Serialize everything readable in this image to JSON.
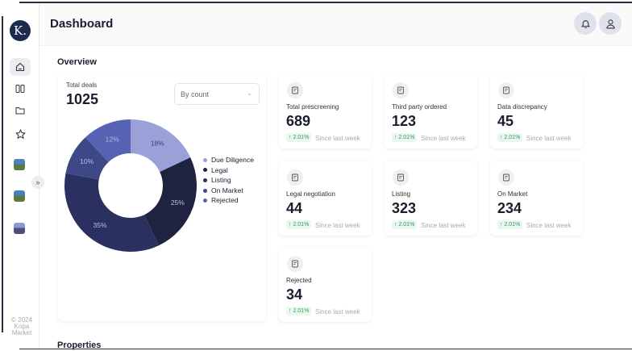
{
  "app": {
    "logo_letter": "K.",
    "copyright": "© 2024 Kopa Market"
  },
  "header": {
    "title": "Dashboard"
  },
  "sections": {
    "overview": "Overview",
    "properties": "Properties"
  },
  "sidebar": {
    "items": [
      {
        "icon": "home-icon"
      },
      {
        "icon": "columns-icon"
      },
      {
        "icon": "folder-icon"
      },
      {
        "icon": "star-icon"
      },
      {
        "icon": "property-thumbnail"
      },
      {
        "icon": "property-thumbnail"
      },
      {
        "icon": "property-thumbnail"
      }
    ]
  },
  "deals": {
    "label": "Total deals",
    "value": "1025",
    "select": "By count"
  },
  "chart_data": {
    "type": "pie",
    "donut": true,
    "categories": [
      "Due Diligence",
      "Legal",
      "Listing",
      "On Market",
      "Rejected"
    ],
    "values": [
      18,
      25,
      35,
      10,
      12
    ],
    "labels": [
      "18%",
      "25%",
      "35%",
      "10%",
      "12%"
    ],
    "colors": [
      "#9aa0d8",
      "#1f2340",
      "#2a3060",
      "#3e4887",
      "#5662b3"
    ],
    "legend_placement": "right"
  },
  "stats": [
    {
      "label": "Total prescreening",
      "value": "689",
      "change": "↑ 2.01%",
      "since": "Since last week"
    },
    {
      "label": "Third party ordered",
      "value": "123",
      "change": "↑ 2.01%",
      "since": "Since last week"
    },
    {
      "label": "Data discrepancy",
      "value": "45",
      "change": "↑ 2.01%",
      "since": "Since last week"
    },
    {
      "label": "Legal negotiation",
      "value": "44",
      "change": "↑ 2.01%",
      "since": "Since last week"
    },
    {
      "label": "Listing",
      "value": "323",
      "change": "↑ 2.01%",
      "since": "Since last week"
    },
    {
      "label": "On Market",
      "value": "234",
      "change": "↑ 2.01%",
      "since": "Since last week"
    },
    {
      "label": "Rejected",
      "value": "34",
      "change": "↑ 2.01%",
      "since": "Since last week"
    }
  ]
}
